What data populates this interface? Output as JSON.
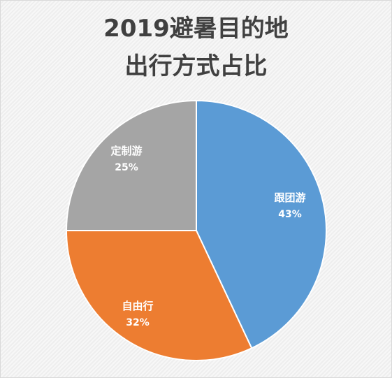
{
  "chart_data": {
    "type": "pie",
    "title_lines": [
      "2019避暑目的地",
      "出行方式占比"
    ],
    "slices": [
      {
        "label": "跟团游",
        "value": 43,
        "value_label": "43%",
        "color": "#5b9bd5"
      },
      {
        "label": "自由行",
        "value": 32,
        "value_label": "32%",
        "color": "#ed7d31"
      },
      {
        "label": "定制游",
        "value": 25,
        "value_label": "25%",
        "color": "#a5a5a5"
      }
    ],
    "start_angle_deg": 0,
    "direction": "clockwise",
    "legend": "none"
  }
}
